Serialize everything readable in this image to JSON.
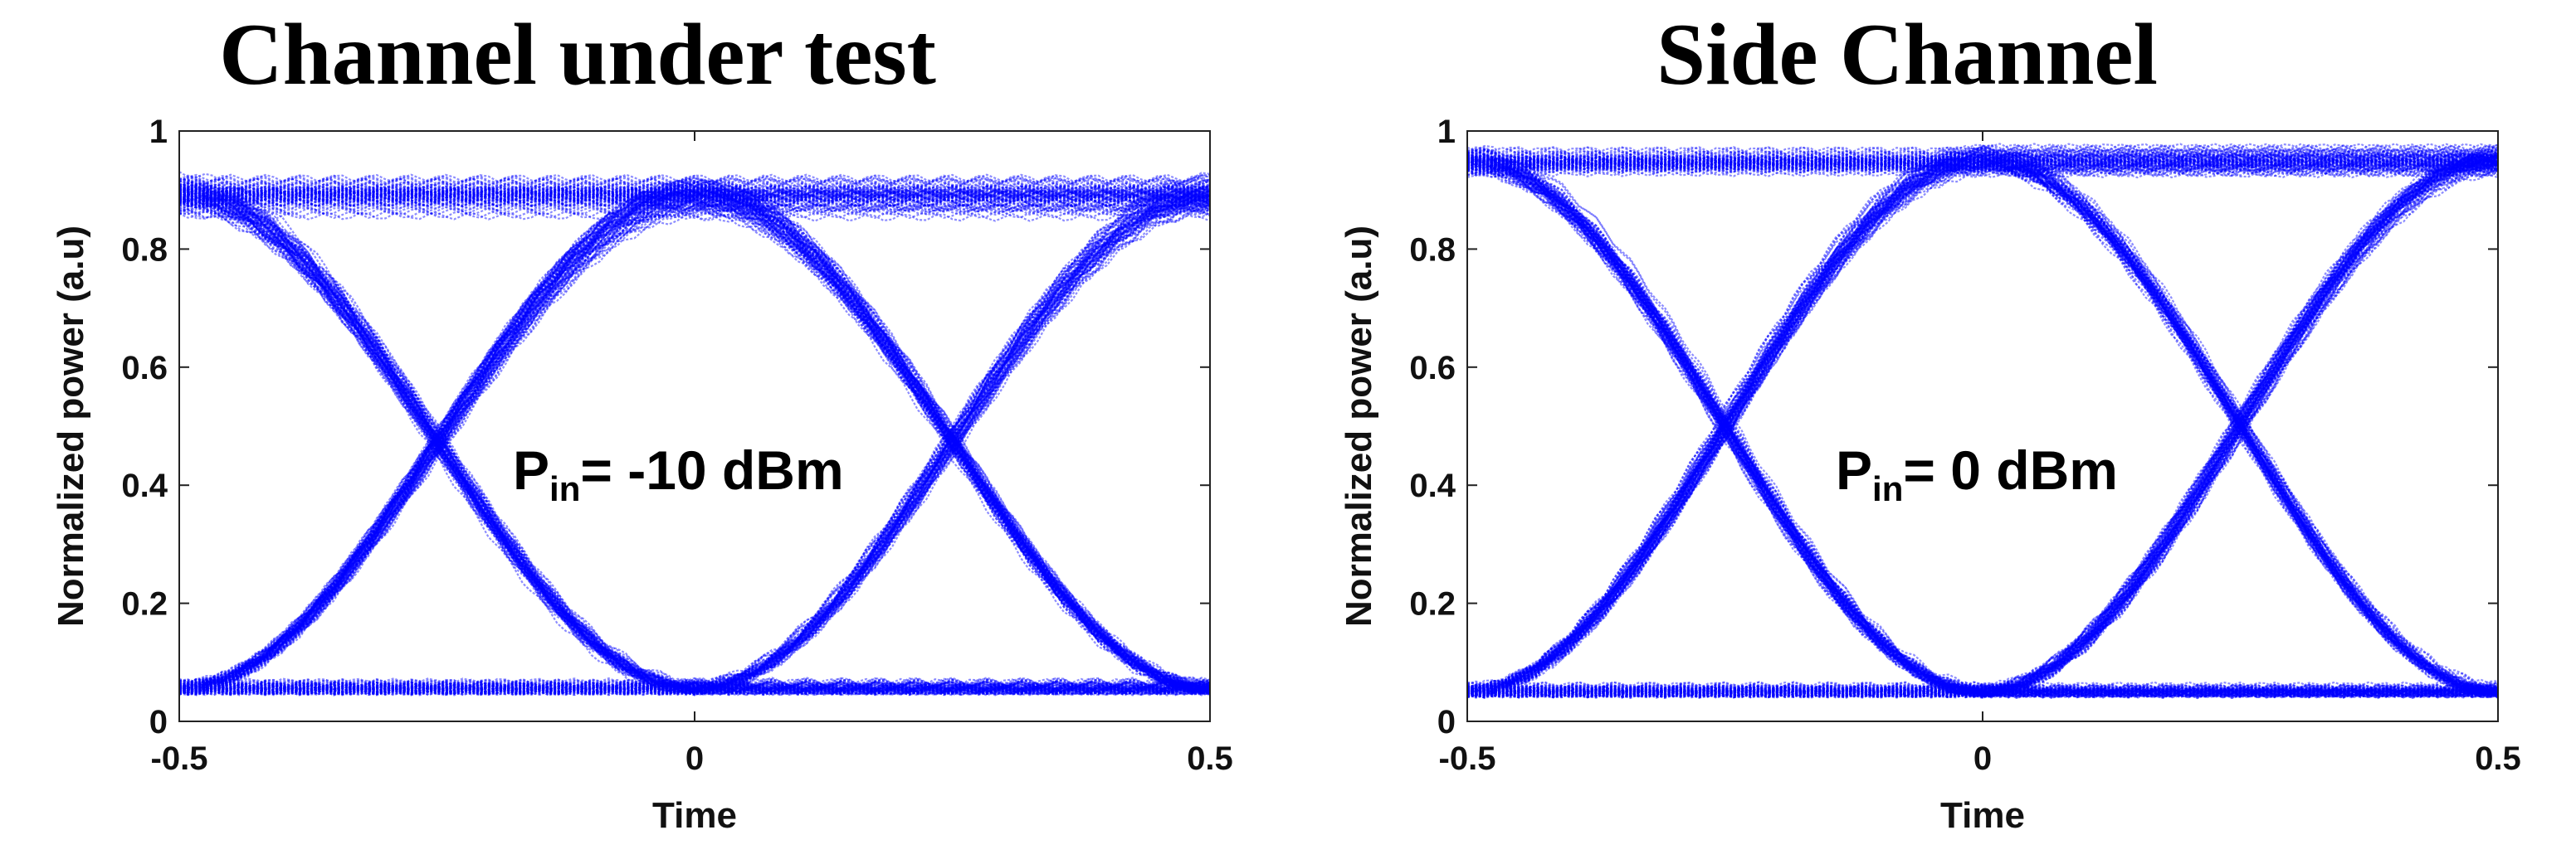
{
  "chart_data": [
    {
      "type": "line",
      "title": "Channel under test",
      "xlabel": "Time",
      "ylabel": "Normalized power (a.u)",
      "xlim": [
        -0.5,
        0.5
      ],
      "ylim": [
        0,
        1
      ],
      "xticks": [
        "-0.5",
        "0",
        "0.5"
      ],
      "yticks": [
        "0",
        "0.2",
        "0.4",
        "0.6",
        "0.8",
        "1"
      ],
      "annotation": {
        "main": "P",
        "sub": "in",
        "rest": "= -10 dBm"
      },
      "series_color": "#0000ff",
      "eye": {
        "high_level": 0.89,
        "low_level": 0.05,
        "crossing_level": 0.47,
        "crossings_x": [
          -0.25,
          0.25
        ],
        "high_noise": 0.07,
        "low_noise": 0.035
      }
    },
    {
      "type": "line",
      "title": "Side Channel",
      "xlabel": "Time",
      "ylabel": "Normalized power (a.u)",
      "xlim": [
        -0.5,
        0.5
      ],
      "ylim": [
        0,
        1
      ],
      "xticks": [
        "-0.5",
        "0",
        "0.5"
      ],
      "yticks": [
        "0",
        "0.2",
        "0.4",
        "0.6",
        "0.8",
        "1"
      ],
      "annotation": {
        "main": "P",
        "sub": "in",
        "rest": "= 0 dBm"
      },
      "series_color": "#0000ff",
      "eye": {
        "high_level": 0.95,
        "low_level": 0.045,
        "crossing_level": 0.49,
        "crossings_x": [
          -0.25,
          0.25
        ],
        "high_noise": 0.045,
        "low_noise": 0.035
      }
    }
  ]
}
